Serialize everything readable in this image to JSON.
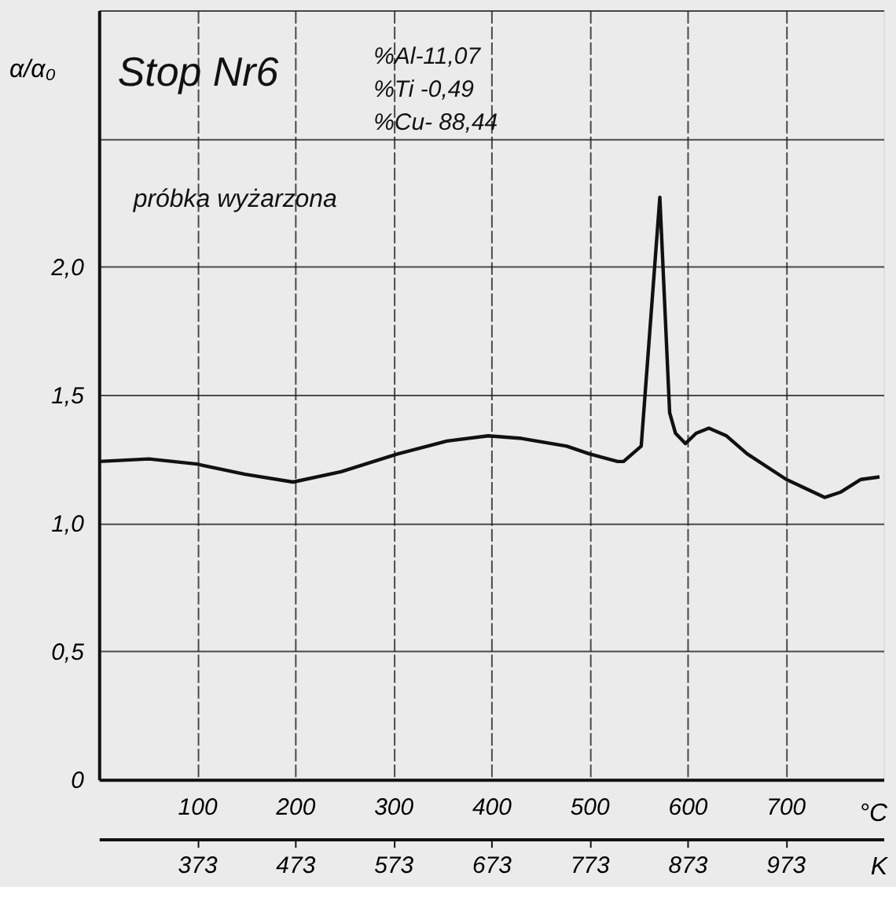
{
  "chart_data": {
    "type": "line",
    "ylabel": "α/α₀",
    "xlabel": "°C",
    "x2label": "K",
    "x": [
      0,
      51,
      100,
      149,
      198,
      247,
      305,
      355,
      397,
      431,
      477,
      500,
      529,
      535,
      553,
      572,
      582,
      588,
      598,
      609,
      622,
      640,
      661,
      701,
      740,
      756,
      777,
      796
    ],
    "series": [
      {
        "color": "#111111",
        "values": [
          1.24,
          1.25,
          1.23,
          1.19,
          1.16,
          1.2,
          1.27,
          1.32,
          1.34,
          1.33,
          1.3,
          1.27,
          1.24,
          1.24,
          1.3,
          2.27,
          1.43,
          1.35,
          1.31,
          1.35,
          1.37,
          1.34,
          1.27,
          1.17,
          1.1,
          1.12,
          1.17,
          1.18
        ]
      }
    ],
    "xlim": [
      0,
      800
    ],
    "xticks": [
      100,
      200,
      300,
      400,
      500,
      600,
      700
    ],
    "x2lim": [
      273,
      1073
    ],
    "x2ticks": [
      373,
      473,
      573,
      673,
      773,
      873,
      973
    ],
    "ylim": [
      0,
      3
    ],
    "yticks": [
      0,
      {
        "value": 0.5,
        "label": "0,5"
      },
      {
        "value": 1.0,
        "label": "1,0"
      },
      {
        "value": 1.5,
        "label": "1,5"
      },
      {
        "value": 2.0,
        "label": "2,0"
      },
      {
        "value": 2.5,
        "label": null
      },
      {
        "value": 3.0,
        "label": null
      }
    ],
    "annotations": [
      "Stop  Nr6",
      "%Al-11,07",
      "%Ti -0,49",
      "%Cu- 88,44",
      "próbka   wyżarzona"
    ],
    "grid": true,
    "marker": "none",
    "line_style": "solid"
  }
}
